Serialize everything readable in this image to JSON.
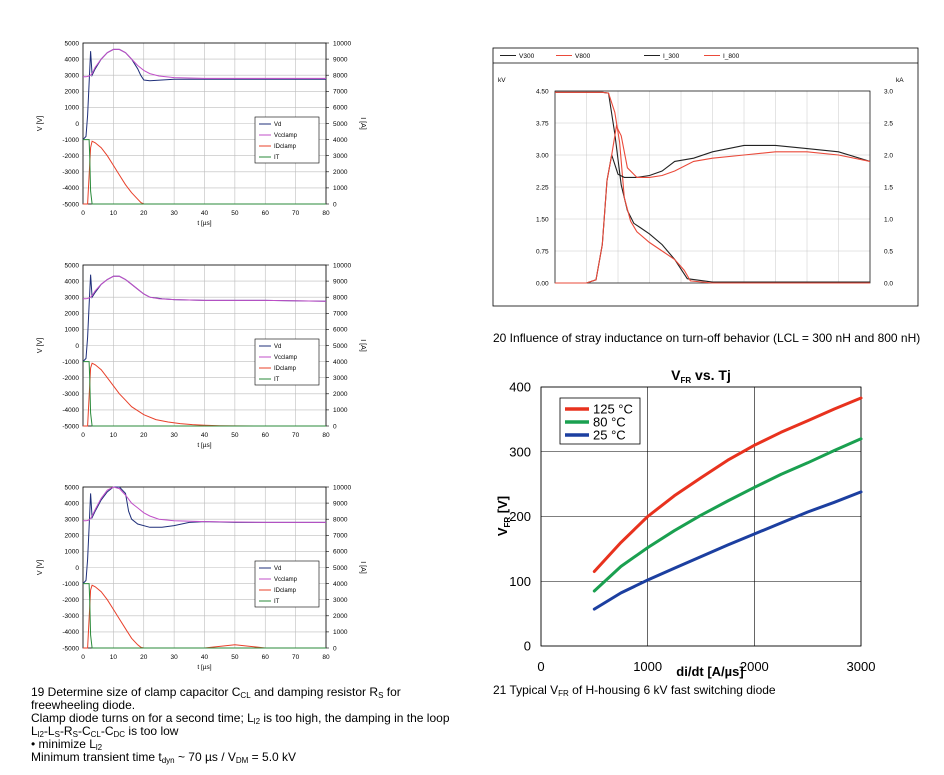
{
  "chart_data": [
    {
      "type": "line",
      "id": "fig19a",
      "xlabel": "t [µs]",
      "ylabel": "V [V]",
      "y2label": "I [A]",
      "x_ticks": [
        "0",
        "10",
        "20",
        "30",
        "40",
        "50",
        "60",
        "70",
        "80"
      ],
      "y_ticks": [
        "5000",
        "4000",
        "3000",
        "2000",
        "1000",
        "0",
        "-1000",
        "-2000",
        "-3000",
        "-4000",
        "-5000"
      ],
      "y2_ticks": [
        "10000",
        "9000",
        "8000",
        "7000",
        "6000",
        "5000",
        "4000",
        "3000",
        "2000",
        "1000",
        "0"
      ],
      "xlim": [
        0,
        80
      ],
      "ylim": [
        -5000,
        5000
      ],
      "y2lim": [
        0,
        10000
      ],
      "legend": [
        "Vd",
        "Vcclamp",
        "IDclamp",
        "IT"
      ],
      "series": [
        {
          "name": "Vd",
          "color": "#1f2f7a",
          "x": [
            0,
            1,
            1.5,
            2,
            2.5,
            3,
            4,
            6,
            8,
            10,
            12,
            14,
            16,
            18,
            19,
            20,
            22,
            26,
            30,
            40,
            60,
            80
          ],
          "y": [
            -1000,
            -800,
            500,
            2500,
            4500,
            3000,
            3400,
            4000,
            4400,
            4600,
            4600,
            4400,
            4000,
            3400,
            3000,
            2700,
            2650,
            2700,
            2750,
            2750,
            2750,
            2750
          ]
        },
        {
          "name": "Vcclamp",
          "color": "#c04fc8",
          "x": [
            0,
            1,
            2,
            2.5,
            3,
            4,
            6,
            8,
            10,
            12,
            14,
            16,
            18,
            20,
            22,
            25,
            30,
            40,
            60,
            80
          ],
          "y": [
            2900,
            2900,
            2950,
            3000,
            3100,
            3500,
            4000,
            4400,
            4600,
            4600,
            4400,
            4000,
            3600,
            3300,
            3100,
            2950,
            2850,
            2800,
            2800,
            2800
          ]
        },
        {
          "name": "IDclamp",
          "color": "#e8402a",
          "axis": "y2",
          "x": [
            0,
            1.5,
            2.5,
            3,
            4,
            6,
            8,
            10,
            12,
            14,
            16,
            18,
            19,
            20
          ],
          "y": [
            0,
            0,
            3500,
            3900,
            3800,
            3500,
            3000,
            2400,
            1800,
            1200,
            700,
            300,
            100,
            0
          ]
        },
        {
          "name": "IT",
          "color": "#2a8a3a",
          "axis": "y2",
          "x": [
            0,
            2,
            2.2,
            2.5,
            3,
            80
          ],
          "y": [
            4000,
            4000,
            3000,
            800,
            0,
            0
          ]
        }
      ]
    },
    {
      "type": "line",
      "id": "fig19b",
      "xlabel": "t [µs]",
      "ylabel": "V [V]",
      "y2label": "I [A]",
      "x_ticks": [
        "0",
        "10",
        "20",
        "30",
        "40",
        "50",
        "60",
        "70",
        "80"
      ],
      "y_ticks": [
        "5000",
        "4000",
        "3000",
        "2000",
        "1000",
        "0",
        "-1000",
        "-2000",
        "-3000",
        "-4000",
        "-5000"
      ],
      "y2_ticks": [
        "10000",
        "9000",
        "8000",
        "7000",
        "6000",
        "5000",
        "4000",
        "3000",
        "2000",
        "1000",
        "0"
      ],
      "xlim": [
        0,
        80
      ],
      "ylim": [
        -5000,
        5000
      ],
      "y2lim": [
        0,
        10000
      ],
      "legend": [
        "Vd",
        "Vcclamp",
        "IDclamp",
        "IT"
      ],
      "series": [
        {
          "name": "Vd",
          "color": "#1f2f7a",
          "x": [
            0,
            1,
            1.5,
            2,
            2.5,
            3,
            4,
            6,
            8,
            10,
            12,
            14,
            16,
            18,
            20,
            22,
            26,
            30,
            40,
            60,
            80
          ],
          "y": [
            -1000,
            -800,
            500,
            2500,
            4400,
            3000,
            3300,
            3800,
            4100,
            4300,
            4300,
            4100,
            3800,
            3500,
            3200,
            3000,
            2900,
            2850,
            2800,
            2800,
            2750
          ]
        },
        {
          "name": "Vcclamp",
          "color": "#c04fc8",
          "x": [
            0,
            1,
            2,
            2.5,
            3,
            4,
            6,
            8,
            10,
            12,
            14,
            16,
            18,
            20,
            22,
            25,
            30,
            40,
            60,
            80
          ],
          "y": [
            2900,
            2900,
            2950,
            3000,
            3100,
            3400,
            3800,
            4100,
            4300,
            4300,
            4100,
            3800,
            3500,
            3200,
            3000,
            2900,
            2850,
            2800,
            2800,
            2750
          ]
        },
        {
          "name": "IDclamp",
          "color": "#e8402a",
          "axis": "y2",
          "x": [
            0,
            1.5,
            2.5,
            3,
            4,
            6,
            8,
            10,
            12,
            14,
            16,
            20,
            24,
            28,
            32,
            36,
            40,
            45,
            50,
            60,
            80
          ],
          "y": [
            0,
            0,
            3600,
            3900,
            3800,
            3500,
            3000,
            2500,
            2000,
            1600,
            1200,
            700,
            400,
            250,
            150,
            90,
            50,
            20,
            5,
            0,
            0
          ]
        },
        {
          "name": "IT",
          "color": "#2a8a3a",
          "axis": "y2",
          "x": [
            0,
            2,
            2.2,
            2.5,
            3,
            80
          ],
          "y": [
            4000,
            4000,
            3000,
            800,
            0,
            0
          ]
        }
      ]
    },
    {
      "type": "line",
      "id": "fig19c",
      "xlabel": "t [µs]",
      "ylabel": "V [V]",
      "y2label": "I [A]",
      "x_ticks": [
        "0",
        "10",
        "20",
        "30",
        "40",
        "50",
        "60",
        "70",
        "80"
      ],
      "y_ticks": [
        "5000",
        "4000",
        "3000",
        "2000",
        "1000",
        "0",
        "-1000",
        "-2000",
        "-3000",
        "-4000",
        "-5000"
      ],
      "y2_ticks": [
        "10000",
        "9000",
        "8000",
        "7000",
        "6000",
        "5000",
        "4000",
        "3000",
        "2000",
        "1000",
        "0"
      ],
      "xlim": [
        0,
        80
      ],
      "ylim": [
        -5000,
        5000
      ],
      "y2lim": [
        0,
        10000
      ],
      "legend": [
        "Vd",
        "Vcclamp",
        "IDclamp",
        "IT"
      ],
      "series": [
        {
          "name": "Vd",
          "color": "#1f2f7a",
          "x": [
            0,
            1,
            1.5,
            2,
            2.5,
            3,
            4,
            6,
            8,
            10,
            12,
            14,
            15,
            16,
            18,
            22,
            26,
            30,
            35,
            40,
            50,
            60,
            80
          ],
          "y": [
            -1000,
            -800,
            500,
            2500,
            4600,
            3100,
            3500,
            4200,
            4700,
            5000,
            5000,
            4600,
            3500,
            3000,
            2700,
            2500,
            2500,
            2600,
            2800,
            2850,
            2800,
            2800,
            2800
          ]
        },
        {
          "name": "Vcclamp",
          "color": "#c04fc8",
          "x": [
            0,
            1,
            2,
            2.5,
            3,
            4,
            6,
            8,
            10,
            12,
            14,
            16,
            18,
            20,
            22,
            25,
            30,
            40,
            60,
            80
          ],
          "y": [
            2900,
            2900,
            2950,
            3050,
            3200,
            3600,
            4300,
            4800,
            5000,
            4900,
            4500,
            4000,
            3700,
            3400,
            3200,
            3000,
            2900,
            2850,
            2800,
            2800
          ]
        },
        {
          "name": "IDclamp",
          "color": "#e8402a",
          "axis": "y2",
          "x": [
            0,
            1.5,
            2.5,
            3,
            4,
            6,
            8,
            10,
            12,
            14,
            16,
            18,
            19,
            20,
            40,
            45,
            50,
            55,
            60,
            80
          ],
          "y": [
            0,
            0,
            3600,
            3900,
            3800,
            3500,
            3000,
            2400,
            1800,
            1200,
            600,
            200,
            50,
            0,
            0,
            100,
            200,
            100,
            0,
            0
          ]
        },
        {
          "name": "IT",
          "color": "#2a8a3a",
          "axis": "y2",
          "x": [
            0,
            2,
            2.2,
            2.5,
            3,
            80
          ],
          "y": [
            4000,
            4000,
            3000,
            800,
            0,
            0
          ]
        }
      ]
    },
    {
      "type": "line",
      "id": "fig20",
      "ylabel": "kV",
      "y2label": "kA",
      "y_ticks": [
        "4.50",
        "3.75",
        "3.00",
        "2.25",
        "1.50",
        "0.75",
        "0.00"
      ],
      "y2_ticks": [
        "3.0",
        "2.5",
        "2.0",
        "1.5",
        "1.0",
        "0.5",
        "0.0"
      ],
      "xlim": [
        0,
        10
      ],
      "ylim": [
        0,
        4.5
      ],
      "y2lim": [
        0,
        3.0
      ],
      "legend": [
        "V300",
        "V800",
        "I_300",
        "I_800"
      ],
      "series": [
        {
          "name": "V300",
          "color": "#222222",
          "x": [
            0,
            1.0,
            1.5,
            1.7,
            1.9,
            2.1,
            2.3,
            2.5,
            2.7,
            3.0,
            3.4,
            3.8,
            4.2,
            5,
            6,
            7,
            8,
            9,
            10
          ],
          "y": [
            4.47,
            4.47,
            4.47,
            4.45,
            3.5,
            2.3,
            1.7,
            1.4,
            1.3,
            1.15,
            0.9,
            0.55,
            0.1,
            0.02,
            0.02,
            0.02,
            0.02,
            0.02,
            0.02
          ]
        },
        {
          "name": "V800",
          "color": "#ea4a3a",
          "x": [
            0,
            1.0,
            1.5,
            1.7,
            1.9,
            2.05,
            2.2,
            2.4,
            2.6,
            3.0,
            3.4,
            3.8,
            4.1,
            4.3,
            5,
            6,
            7,
            8,
            9,
            10
          ],
          "y": [
            4.47,
            4.47,
            4.47,
            4.45,
            4.0,
            3.3,
            2.0,
            1.45,
            1.2,
            0.95,
            0.75,
            0.55,
            0.3,
            0.05,
            0.0,
            0.0,
            0.0,
            0.0,
            0.0,
            0.0
          ]
        },
        {
          "name": "I_300",
          "color": "#222222",
          "axis": "y2",
          "x": [
            0,
            1.0,
            1.3,
            1.5,
            1.65,
            1.8,
            2.0,
            2.2,
            2.6,
            3.0,
            3.4,
            3.8,
            4.4,
            5,
            6,
            7,
            8,
            9,
            10
          ],
          "y": [
            0,
            0,
            0.05,
            0.6,
            1.6,
            2.0,
            1.7,
            1.65,
            1.65,
            1.68,
            1.75,
            1.9,
            1.95,
            2.05,
            2.15,
            2.15,
            2.1,
            2.05,
            1.9
          ]
        },
        {
          "name": "I_800",
          "color": "#ea4a3a",
          "axis": "y2",
          "x": [
            0,
            1.0,
            1.3,
            1.5,
            1.65,
            1.8,
            1.95,
            2.1,
            2.3,
            2.6,
            3.0,
            3.4,
            3.8,
            4.4,
            5,
            6,
            7,
            8,
            9,
            10
          ],
          "y": [
            0,
            0,
            0.05,
            0.6,
            1.6,
            2.0,
            2.45,
            2.3,
            1.8,
            1.65,
            1.65,
            1.68,
            1.75,
            1.9,
            1.95,
            2.0,
            2.05,
            2.05,
            2.0,
            1.9
          ]
        }
      ]
    },
    {
      "type": "line",
      "id": "fig21",
      "title_main": "V",
      "title_sub": "FR",
      "title_rest": " vs. Tj",
      "xlabel": "di/dt [A/µs]",
      "ylabel_main": "V",
      "ylabel_sub": "FR",
      "ylabel_rest": " [V]",
      "x_ticks": [
        "0",
        "1000",
        "2000",
        "3000"
      ],
      "y_ticks": [
        "0",
        "100",
        "200",
        "300",
        "400"
      ],
      "xlim": [
        0,
        3000
      ],
      "ylim": [
        0,
        400
      ],
      "legend": [
        "125 °C",
        "80 °C",
        "25 °C"
      ],
      "series": [
        {
          "name": "125 °C",
          "color": "#e8321e",
          "x": [
            500,
            750,
            1000,
            1250,
            1500,
            1750,
            2000,
            2250,
            2500,
            2750,
            3000
          ],
          "y": [
            115,
            160,
            200,
            232,
            260,
            287,
            310,
            330,
            348,
            366,
            383
          ]
        },
        {
          "name": "80 °C",
          "color": "#1aa050",
          "x": [
            500,
            750,
            1000,
            1250,
            1500,
            1750,
            2000,
            2250,
            2500,
            2750,
            3000
          ],
          "y": [
            85,
            123,
            152,
            178,
            202,
            224,
            245,
            265,
            283,
            302,
            320
          ]
        },
        {
          "name": "25 °C",
          "color": "#1c3fa0",
          "x": [
            500,
            750,
            1000,
            1250,
            1500,
            1750,
            2000,
            2250,
            2500,
            2750,
            3000
          ],
          "y": [
            57,
            82,
            102,
            120,
            138,
            156,
            173,
            190,
            207,
            222,
            238
          ]
        }
      ]
    }
  ],
  "captions": {
    "c19_l1a": "19 Determine size of clamp capacitor C",
    "c19_l1s1": "CL",
    "c19_l1b": " and damping resistor R",
    "c19_l1s2": "S",
    "c19_l1c": " for",
    "c19_l2": "freewheeling diode.",
    "c19_l3a": "Clamp diode turns on for a second time; L",
    "c19_l3s": "l2",
    "c19_l3b": " is too high, the damping in the loop",
    "c19_l4a": "L",
    "c19_l4s1": "l2",
    "c19_l4b": "-L",
    "c19_l4s2": "S",
    "c19_l4c": "-R",
    "c19_l4s3": "S",
    "c19_l4d": "-C",
    "c19_l4s4": "CL",
    "c19_l4e": "-C",
    "c19_l4s5": "DC",
    "c19_l4f": " is too low",
    "c19_l5a": "• minimize L",
    "c19_l5s": "l2",
    "c19_l6a": "Minimum transient time t",
    "c19_l6s1": "dyn",
    "c19_l6b": " ~ 70 µs  /  V",
    "c19_l6s2": "DM",
    "c19_l6c": " = 5.0 kV",
    "c20": "20 Influence of stray inductance on turn-off behavior (LCL = 300 nH and 800 nH)",
    "c21a": "21 Typical V",
    "c21s": "FR",
    "c21b": " of H-housing 6 kV fast switching diode"
  }
}
